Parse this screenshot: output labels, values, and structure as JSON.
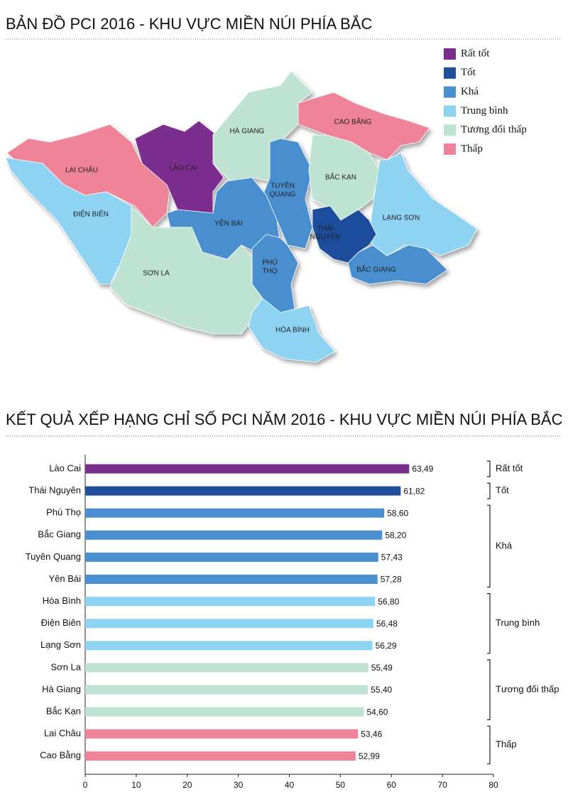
{
  "map": {
    "title": "BẢN ĐỒ PCI 2016 - KHU VỰC MIỀN NÚI PHÍA BẮC",
    "legend": [
      {
        "label": "Rất tốt",
        "color": "#7b2d8e"
      },
      {
        "label": "Tốt",
        "color": "#1f4e9c"
      },
      {
        "label": "Khá",
        "color": "#4a8fd0"
      },
      {
        "label": "Trung bình",
        "color": "#8fd3f3"
      },
      {
        "label": "Tương đối thấp",
        "color": "#bfe3d3"
      },
      {
        "label": "Thấp",
        "color": "#ef8397"
      }
    ],
    "regions": [
      {
        "label": [
          "LAI CHÂU"
        ],
        "color": "#ef8397"
      },
      {
        "label": [
          "ĐIỆN BIÊN"
        ],
        "color": "#8fd3f3"
      },
      {
        "label": [
          "LÀO CAI"
        ],
        "color": "#7b2d8e"
      },
      {
        "label": [
          "HÀ GIANG"
        ],
        "color": "#bfe3d3"
      },
      {
        "label": [
          "CAO BẰNG"
        ],
        "color": "#ef8397"
      },
      {
        "label": [
          "TUYÊN",
          "QUANG"
        ],
        "color": "#4a8fd0"
      },
      {
        "label": [
          "BẮC KẠN"
        ],
        "color": "#bfe3d3"
      },
      {
        "label": [
          "LẠNG SƠN"
        ],
        "color": "#8fd3f3"
      },
      {
        "label": [
          "THÁI",
          "NGUYÊN"
        ],
        "color": "#1f4e9c"
      },
      {
        "label": [
          "BẮC GIANG"
        ],
        "color": "#4a8fd0"
      },
      {
        "label": [
          "YÊN BÁI"
        ],
        "color": "#4a8fd0"
      },
      {
        "label": [
          "PHÚ",
          "THỌ"
        ],
        "color": "#4a8fd0"
      },
      {
        "label": [
          "SƠN LA"
        ],
        "color": "#bfe3d3"
      },
      {
        "label": [
          "HÒA BÌNH"
        ],
        "color": "#8fd3f3"
      }
    ]
  },
  "chart_data": {
    "type": "barh",
    "title": "KẾT QUẢ XẾP HẠNG CHỈ SỐ PCI NĂM 2016 - KHU VỰC MIỀN NÚI PHÍA BẮC",
    "categories": [
      "Lào Cai",
      "Thái Nguyên",
      "Phú Thọ",
      "Bắc Giang",
      "Tuyên Quang",
      "Yên Bái",
      "Hòa Bình",
      "Điện Biên",
      "Lạng Sơn",
      "Sơn La",
      "Hà Giang",
      "Bắc Kạn",
      "Lai Châu",
      "Cao Bằng"
    ],
    "values": [
      63.49,
      61.82,
      58.6,
      58.2,
      57.43,
      57.28,
      56.8,
      56.48,
      56.29,
      55.49,
      55.4,
      54.6,
      53.46,
      52.99
    ],
    "value_labels": [
      "63,49",
      "61,82",
      "58,60",
      "58,20",
      "57,43",
      "57,28",
      "56,80",
      "56,48",
      "56,29",
      "55,49",
      "55,40",
      "54,60",
      "53,46",
      "52,99"
    ],
    "colors": [
      "#7b2d8e",
      "#1f4e9c",
      "#4a8fd0",
      "#4a8fd0",
      "#4a8fd0",
      "#4a8fd0",
      "#8fd3f3",
      "#8fd3f3",
      "#8fd3f3",
      "#bfe3d3",
      "#bfe3d3",
      "#bfe3d3",
      "#ef8397",
      "#ef8397"
    ],
    "groups": [
      {
        "label": "Rất tốt",
        "size": 1
      },
      {
        "label": "Tốt",
        "size": 1
      },
      {
        "label": "Khá",
        "size": 4
      },
      {
        "label": "Trung bình",
        "size": 3
      },
      {
        "label": "Tương đối thấp",
        "size": 3
      },
      {
        "label": "Thấp",
        "size": 2
      }
    ],
    "xlim": [
      0,
      80
    ],
    "xticks": [
      0,
      10,
      20,
      30,
      40,
      50,
      60,
      70,
      80
    ]
  }
}
